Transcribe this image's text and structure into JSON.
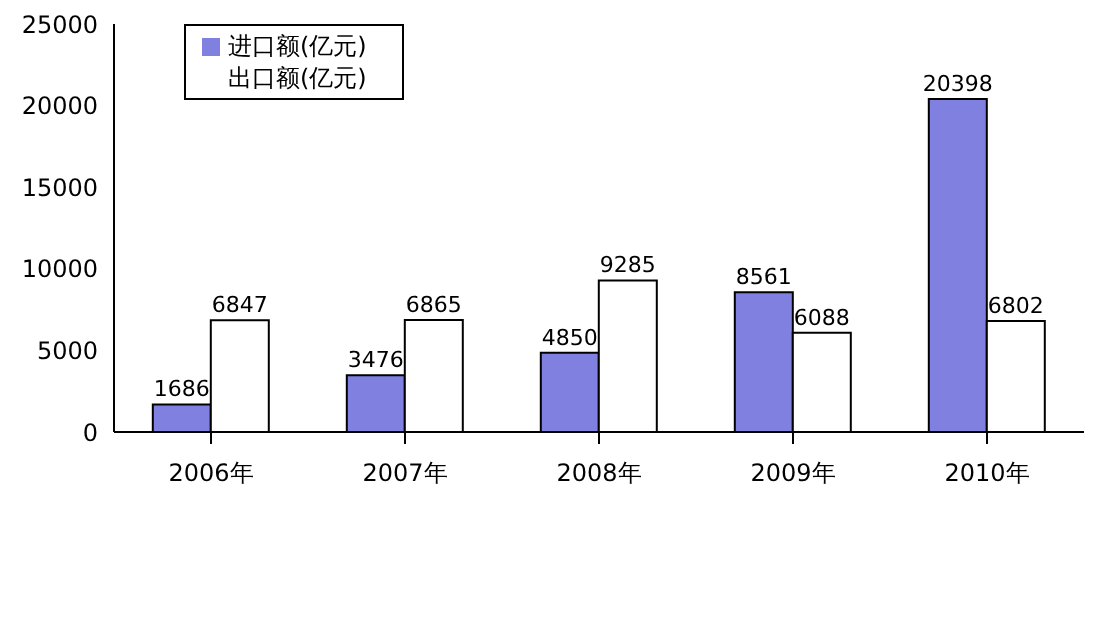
{
  "chart_data": {
    "type": "bar",
    "categories": [
      "2006年",
      "2007年",
      "2008年",
      "2009年",
      "2010年"
    ],
    "series": [
      {
        "name": "进口额(亿元)",
        "color": "#8080e0",
        "values": [
          1686,
          3476,
          4850,
          8561,
          20398
        ]
      },
      {
        "name": "出口额(亿元)",
        "color": "#ffffff",
        "values": [
          6847,
          6865,
          9285,
          6088,
          6802
        ]
      }
    ],
    "ylim": [
      0,
      25000
    ],
    "yticks": [
      0,
      5000,
      10000,
      15000,
      20000,
      25000
    ],
    "grid": false,
    "legend": "top left",
    "data_labels": true
  }
}
